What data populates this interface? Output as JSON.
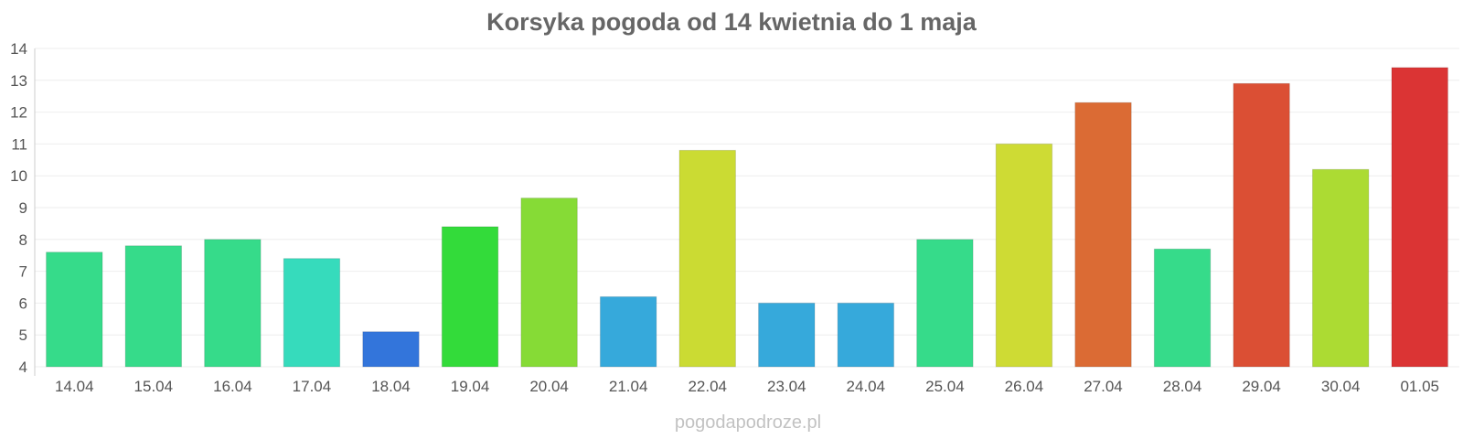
{
  "chart_data": {
    "type": "bar",
    "title": "Korsyka pogoda od 14 kwietnia do 1 maja",
    "xlabel": "",
    "ylabel": "",
    "categories": [
      "14.04",
      "15.04",
      "16.04",
      "17.04",
      "18.04",
      "19.04",
      "20.04",
      "21.04",
      "22.04",
      "23.04",
      "24.04",
      "25.04",
      "26.04",
      "27.04",
      "28.04",
      "29.04",
      "30.04",
      "01.05"
    ],
    "values": [
      7.6,
      7.8,
      8.0,
      7.4,
      5.1,
      8.4,
      9.3,
      6.2,
      10.8,
      6.0,
      6.0,
      8.0,
      11.0,
      12.3,
      7.7,
      12.9,
      10.2,
      13.4
    ],
    "colors": [
      "#36db8a",
      "#36db8a",
      "#36db8a",
      "#36dbbc",
      "#3375db",
      "#33db3a",
      "#86db36",
      "#36a9db",
      "#cbdb33",
      "#36a9db",
      "#36a9db",
      "#36db8a",
      "#cedb34",
      "#db6b34",
      "#36db8a",
      "#db4f34",
      "#acdb33",
      "#db3434"
    ],
    "ylim": [
      4,
      14
    ],
    "yticks": [
      4,
      5,
      6,
      7,
      8,
      9,
      10,
      11,
      12,
      13,
      14
    ],
    "grid": true,
    "legend": "none"
  },
  "footer": {
    "watermark": "pogodapodroze.pl"
  }
}
